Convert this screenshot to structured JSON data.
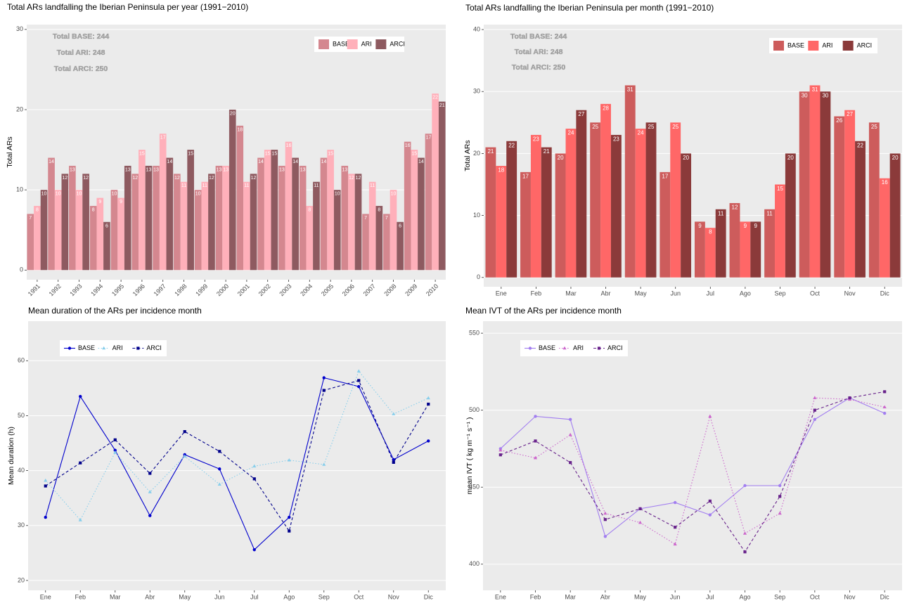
{
  "chart_data": [
    {
      "type": "bar",
      "title": "Total ARs landfalling the Iberian Peninsula per year (1991−2010)",
      "y_label": "Total ARs",
      "categories": [
        "1991",
        "1992",
        "1993",
        "1994",
        "1995",
        "1996",
        "1997",
        "1998",
        "1999",
        "2000",
        "2001",
        "2002",
        "2003",
        "2004",
        "2005",
        "2006",
        "2007",
        "2008",
        "2009",
        "2010"
      ],
      "series": [
        {
          "name": "BASE",
          "color": "#d4878f",
          "values": [
            7,
            14,
            13,
            8,
            10,
            12,
            13,
            12,
            10,
            13,
            18,
            14,
            13,
            13,
            14,
            13,
            7,
            7,
            16,
            17
          ]
        },
        {
          "name": "ARI",
          "color": "#ffb0ba",
          "values": [
            8,
            10,
            10,
            9,
            9,
            15,
            17,
            11,
            11,
            13,
            11,
            15,
            16,
            8,
            15,
            12,
            11,
            10,
            15,
            22
          ]
        },
        {
          "name": "ARCI",
          "color": "#8e5a60",
          "values": [
            10,
            12,
            12,
            6,
            13,
            13,
            14,
            15,
            12,
            20,
            12,
            15,
            14,
            11,
            10,
            12,
            8,
            6,
            14,
            21
          ]
        }
      ],
      "ylim": [
        -1.2,
        30.6
      ],
      "yticks": [
        0,
        10,
        20,
        30
      ],
      "grid": true,
      "legend_position": "top-right",
      "x_labels_rotated": true,
      "annotations": [
        "Total BASE: 244",
        "Total ARI: 248",
        "Total ARCI: 250"
      ]
    },
    {
      "type": "bar",
      "title": "Total ARs landfalling the Iberian Peninsula per month (1991−2010)",
      "y_label": "Total ARs",
      "categories": [
        "Ene",
        "Feb",
        "Mar",
        "Abr",
        "May",
        "Jun",
        "Jul",
        "Ago",
        "Sep",
        "Oct",
        "Nov",
        "Dic"
      ],
      "series": [
        {
          "name": "BASE",
          "color": "#cd5c5c",
          "values": [
            21,
            17,
            20,
            25,
            31,
            17,
            9,
            12,
            11,
            30,
            26,
            25
          ]
        },
        {
          "name": "ARI",
          "color": "#ff6767",
          "values": [
            18,
            23,
            24,
            28,
            24,
            25,
            8,
            9,
            15,
            31,
            27,
            16
          ]
        },
        {
          "name": "ARCI",
          "color": "#8b3a3a",
          "values": [
            22,
            21,
            27,
            23,
            25,
            20,
            11,
            9,
            20,
            30,
            22,
            20
          ]
        }
      ],
      "ylim": [
        -1.5,
        40.8
      ],
      "yticks": [
        0,
        10,
        20,
        30,
        40
      ],
      "grid": true,
      "legend_position": "top-right",
      "x_labels_rotated": false,
      "annotations": [
        "Total BASE: 244",
        "Total ARI: 248",
        "Total ARCI: 250"
      ]
    },
    {
      "type": "line",
      "title": "Mean duration of the ARs per incidence month",
      "y_label": "Mean duration (h)",
      "categories": [
        "Ene",
        "Feb",
        "Mar",
        "Abr",
        "May",
        "Jun",
        "Jul",
        "Ago",
        "Sep",
        "Oct",
        "Nov",
        "Dic"
      ],
      "series": [
        {
          "name": "BASE",
          "color": "#0000cd",
          "linetype": "solid",
          "marker": "circle",
          "values": [
            31.5,
            53.5,
            43.7,
            31.8,
            42.9,
            40.3,
            25.6,
            31.5,
            56.9,
            55.3,
            42.0,
            45.4
          ]
        },
        {
          "name": "ARI",
          "color": "#87ceeb",
          "linetype": "dotted",
          "marker": "triangle",
          "values": [
            38.2,
            31.0,
            43.3,
            36.1,
            42.6,
            37.5,
            40.8,
            41.9,
            41.1,
            58.1,
            50.3,
            53.2
          ]
        },
        {
          "name": "ARCI",
          "color": "#00008b",
          "linetype": "dashed",
          "marker": "square",
          "values": [
            37.2,
            41.4,
            45.6,
            39.5,
            47.1,
            43.5,
            38.5,
            29.0,
            54.6,
            56.4,
            41.5,
            52.1
          ]
        }
      ],
      "ylim": [
        18.2,
        67.2
      ],
      "yticks": [
        20,
        30,
        40,
        50,
        60
      ],
      "grid": true,
      "legend_position": "top-left"
    },
    {
      "type": "line",
      "title": "Mean IVT of the ARs per incidence month",
      "y_label": "mean IVT ( kg m⁻¹ s⁻¹ )",
      "categories": [
        "Ene",
        "Feb",
        "Mar",
        "Abr",
        "May",
        "Jun",
        "Jul",
        "Ago",
        "Sep",
        "Oct",
        "Nov",
        "Dic"
      ],
      "series": [
        {
          "name": "BASE",
          "color": "#a27ef0",
          "linetype": "solid",
          "marker": "circle",
          "values": [
            475,
            496,
            494,
            418,
            436,
            440,
            432,
            451,
            451,
            494,
            508,
            498
          ]
        },
        {
          "name": "ARI",
          "color": "#cc66cc",
          "linetype": "dotted",
          "marker": "triangle",
          "values": [
            474,
            469,
            484,
            433,
            427,
            413,
            496,
            420,
            433,
            508,
            507,
            502
          ]
        },
        {
          "name": "ARCI",
          "color": "#68228b",
          "linetype": "dashed",
          "marker": "square",
          "values": [
            471,
            480,
            466,
            429,
            436,
            424,
            441,
            408,
            444,
            500,
            508,
            512
          ]
        }
      ],
      "ylim": [
        383,
        557.8
      ],
      "yticks": [
        400,
        450,
        500,
        550
      ],
      "grid": true,
      "legend_position": "top-left"
    }
  ]
}
